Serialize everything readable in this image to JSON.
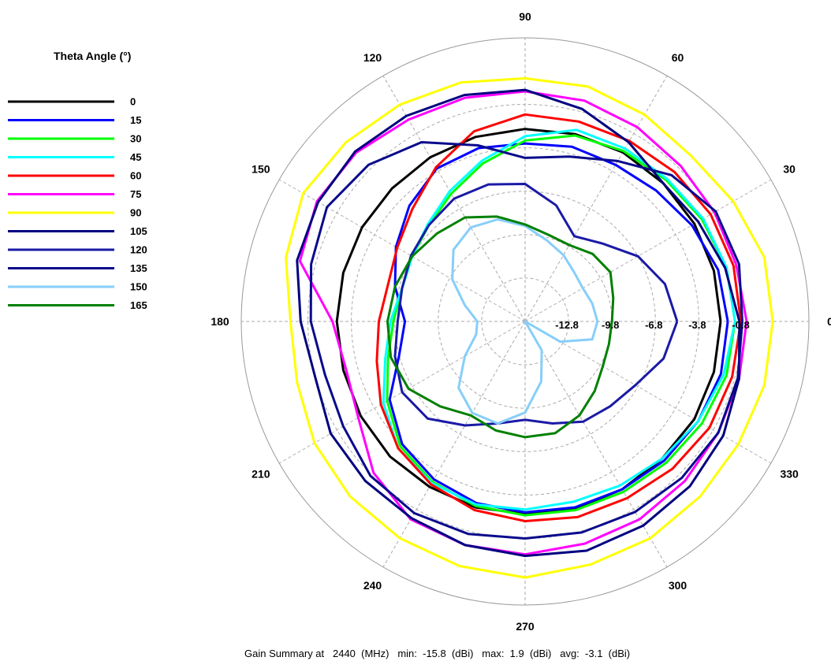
{
  "chart_data": {
    "type": "polar-line",
    "legend_title": "Theta Angle (°)",
    "angle_labels": [
      "0",
      "30",
      "60",
      "90",
      "120",
      "150",
      "180",
      "210",
      "240",
      "270",
      "300",
      "330"
    ],
    "radial_axis": {
      "min": -15.8,
      "max": 3.8,
      "ticks": [
        -12.8,
        -9.8,
        -6.8,
        -3.8,
        -0.8
      ],
      "tick_labels": [
        "-12.8",
        "-9.8",
        "-6.8",
        "-3.8",
        "-0.8"
      ],
      "unit": "dBi"
    },
    "phi_step_deg": 15,
    "grid": true,
    "legend_position": "left",
    "series": [
      {
        "name": "0",
        "color": "#000000",
        "values": [
          -2.3,
          -2.3,
          -2.3,
          -2.3,
          -2.3,
          -2.4,
          -2.5,
          -2.6,
          -2.7,
          -2.8,
          -2.8,
          -2.8,
          -2.8,
          -2.8,
          -2.7,
          -2.6,
          -2.6,
          -2.5,
          -2.5,
          -2.4,
          -2.4,
          -2.4,
          -2.3,
          -2.3
        ]
      },
      {
        "name": "15",
        "color": "#0000ff",
        "values": [
          -1.8,
          -2.0,
          -2.5,
          -3.0,
          -3.3,
          -3.3,
          -3.5,
          -3.4,
          -3.6,
          -4.5,
          -5.5,
          -6.5,
          -7.5,
          -6.8,
          -5.0,
          -3.8,
          -3.2,
          -2.8,
          -2.6,
          -2.5,
          -2.4,
          -2.2,
          -2.0,
          -1.8
        ]
      },
      {
        "name": "30",
        "color": "#00ff00",
        "values": [
          -1.3,
          -1.4,
          -1.7,
          -2.0,
          -2.2,
          -2.5,
          -3.3,
          -4.5,
          -5.6,
          -6.4,
          -6.8,
          -7.0,
          -6.7,
          -6.0,
          -4.8,
          -3.6,
          -3.0,
          -2.6,
          -2.4,
          -2.3,
          -2.2,
          -2.0,
          -1.7,
          -1.4
        ]
      },
      {
        "name": "45",
        "color": "#00ffff",
        "values": [
          -1.3,
          -1.4,
          -1.6,
          -1.9,
          -2.0,
          -2.1,
          -3.0,
          -4.3,
          -5.4,
          -6.3,
          -6.8,
          -7.0,
          -6.5,
          -5.8,
          -4.5,
          -3.4,
          -2.9,
          -2.7,
          -2.8,
          -2.9,
          -2.7,
          -2.4,
          -2.0,
          -1.6
        ]
      },
      {
        "name": "60",
        "color": "#ff0000",
        "values": [
          -0.9,
          -0.9,
          -1.0,
          -1.2,
          -1.4,
          -1.5,
          -1.5,
          -2.2,
          -3.5,
          -4.8,
          -5.6,
          -6.0,
          -5.7,
          -5.2,
          -4.3,
          -3.4,
          -2.8,
          -2.3,
          -2.0,
          -1.8,
          -1.7,
          -1.4,
          -1.1,
          -1.0
        ]
      },
      {
        "name": "75",
        "color": "#ff00ff",
        "values": [
          -0.5,
          -0.7,
          -0.7,
          -0.6,
          -0.3,
          0.0,
          0.1,
          0.2,
          0.3,
          0.7,
          0.8,
          0.3,
          -2.5,
          -3.0,
          -2.5,
          -1.0,
          0.0,
          0.2,
          0.3,
          0.1,
          0.0,
          -0.2,
          -0.4,
          -0.5
        ]
      },
      {
        "name": "90",
        "color": "#ffff00",
        "values": [
          1.3,
          1.3,
          0.8,
          0.4,
          0.7,
          1.0,
          1.0,
          1.3,
          1.5,
          1.7,
          1.9,
          1.3,
          0.4,
          0.5,
          1.0,
          1.3,
          1.5,
          1.7,
          1.9,
          1.6,
          1.5,
          1.3,
          1.2,
          1.3
        ]
      },
      {
        "name": "105",
        "color": "#000080",
        "values": [
          -1.0,
          -1.5,
          -2.0,
          -2.3,
          -1.5,
          -0.6,
          0.2,
          0.4,
          0.6,
          0.8,
          0.7,
          0.5,
          -0.3,
          -0.8,
          -0.3,
          -0.2,
          -0.1,
          0.2,
          0.4,
          0.6,
          0.5,
          0.3,
          0.0,
          -0.5
        ]
      },
      {
        "name": "120",
        "color": "#1a1aa6",
        "values": [
          -5.3,
          -5.8,
          -6.8,
          -8.2,
          -9.0,
          -7.5,
          -6.3,
          -6.0,
          -6.0,
          -6.4,
          -6.7,
          -7.0,
          -7.0,
          -6.5,
          -6.0,
          -6.3,
          -7.5,
          -8.5,
          -9.0,
          -8.5,
          -7.8,
          -7.5,
          -7.0,
          -5.9
        ]
      },
      {
        "name": "135",
        "color": "#0a0a8c",
        "values": [
          -0.8,
          -0.5,
          -0.6,
          -1.5,
          -3.0,
          -4.0,
          -4.5,
          -3.2,
          -1.5,
          -0.5,
          0.0,
          -0.5,
          -1.0,
          -1.5,
          -1.3,
          -0.7,
          -0.5,
          -0.6,
          -0.8,
          -0.7,
          -0.6,
          -0.5,
          -0.4,
          -0.6
        ]
      },
      {
        "name": "150",
        "color": "#87cefa",
        "values": [
          -10.8,
          -11.0,
          -11.2,
          -11.0,
          -10.5,
          -10.0,
          -9.2,
          -8.5,
          -8.3,
          -8.8,
          -10.0,
          -11.5,
          -12.5,
          -12.3,
          -11.0,
          -9.3,
          -8.5,
          -8.5,
          -9.5,
          -11.5,
          -13.5,
          -15.8,
          -13.0,
          -11.0
        ]
      },
      {
        "name": "165",
        "color": "#008000",
        "values": [
          -9.8,
          -9.5,
          -9.0,
          -9.2,
          -9.7,
          -9.6,
          -9.1,
          -8.3,
          -7.5,
          -7.2,
          -6.8,
          -6.5,
          -6.3,
          -6.2,
          -6.5,
          -7.5,
          -8.3,
          -8.0,
          -7.8,
          -7.8,
          -8.3,
          -9.0,
          -9.6,
          -9.8
        ]
      }
    ]
  },
  "footer": {
    "text": "Gain Summary at   2440  (MHz)   min:  -15.8  (dBi)   max:  1.9  (dBi)   avg:  -3.1  (dBi)"
  }
}
